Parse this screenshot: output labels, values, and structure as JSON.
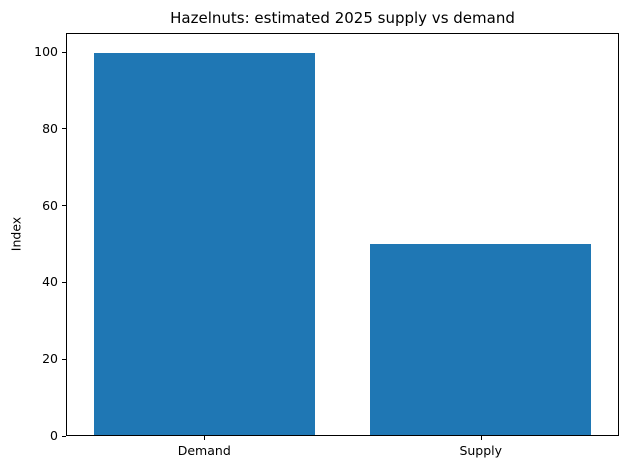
{
  "chart_data": {
    "type": "bar",
    "title": "Hazelnuts: estimated 2025 supply vs demand",
    "categories": [
      "Demand",
      "Supply"
    ],
    "values": [
      100,
      50
    ],
    "xlabel": "",
    "ylabel": "Index",
    "ylim": [
      0,
      105
    ],
    "yticks": [
      0,
      20,
      40,
      60,
      80,
      100
    ],
    "bar_color": "#1f77b4",
    "bar_width_fraction": 0.8,
    "grid": false,
    "legend": "none"
  }
}
